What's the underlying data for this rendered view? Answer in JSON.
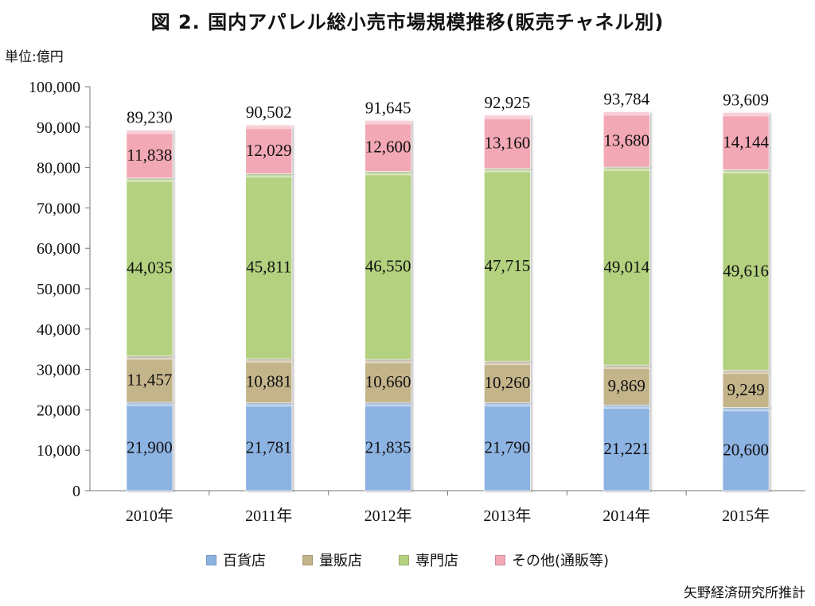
{
  "title": "図 2.  国内アパレル総小売市場規模推移(販売チャネル別)",
  "unit_label": "単位:億円",
  "source": "矢野経済研究所推計",
  "chart_data": {
    "type": "bar",
    "stacked": true,
    "categories": [
      "2010年",
      "2011年",
      "2012年",
      "2013年",
      "2014年",
      "2015年"
    ],
    "series": [
      {
        "name": "百貨店",
        "color": "#8db3e2",
        "values": [
          21900,
          21781,
          21835,
          21790,
          21221,
          20600
        ],
        "labels": [
          "21,900",
          "21,781",
          "21,835",
          "21,790",
          "21,221",
          "20,600"
        ]
      },
      {
        "name": "量販店",
        "color": "#c4b48a",
        "values": [
          11457,
          10881,
          10660,
          10260,
          9869,
          9249
        ],
        "labels": [
          "11,457",
          "10,881",
          "10,660",
          "10,260",
          "9,869",
          "9,249"
        ]
      },
      {
        "name": "専門店",
        "color": "#b3d17f",
        "values": [
          44035,
          45811,
          46550,
          47715,
          49014,
          49616
        ],
        "labels": [
          "44,035",
          "45,811",
          "46,550",
          "47,715",
          "49,014",
          "49,616"
        ]
      },
      {
        "name": "その他(通販等)",
        "color": "#f2a8b5",
        "values": [
          11838,
          12029,
          12600,
          13160,
          13680,
          14144
        ],
        "labels": [
          "11,838",
          "12,029",
          "12,600",
          "13,160",
          "13,680",
          "14,144"
        ]
      }
    ],
    "totals": [
      89230,
      90502,
      91645,
      92925,
      93784,
      93609
    ],
    "total_labels": [
      "89,230",
      "90,502",
      "91,645",
      "92,925",
      "93,784",
      "93,609"
    ],
    "ylim": [
      0,
      100000
    ],
    "yticks": [
      0,
      10000,
      20000,
      30000,
      40000,
      50000,
      60000,
      70000,
      80000,
      90000,
      100000
    ],
    "ytick_labels": [
      "0",
      "10,000",
      "20,000",
      "30,000",
      "40,000",
      "50,000",
      "60,000",
      "70,000",
      "80,000",
      "90,000",
      "100,000"
    ],
    "grid": false,
    "legend_position": "bottom"
  }
}
